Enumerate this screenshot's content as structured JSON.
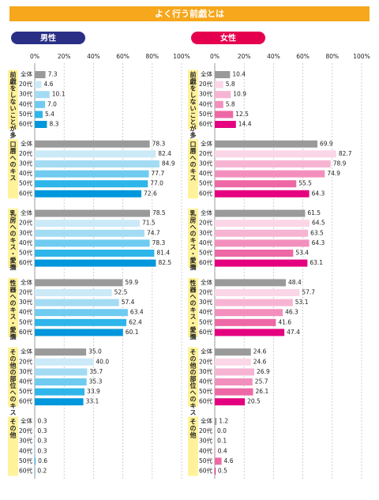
{
  "title": "よく行う前戯とは",
  "chart_data": [
    {
      "type": "bar",
      "horizontal": true,
      "title": "男性",
      "title_color": "#2a2f86",
      "categories": [
        "全体",
        "20代",
        "30代",
        "40代",
        "50代",
        "60代"
      ],
      "colors": [
        "#9a9a9a",
        "#cbe9f7",
        "#a3dbf3",
        "#6fcbf0",
        "#2eb5ea",
        "#0097dc"
      ],
      "xlim": [
        0,
        100
      ],
      "xticks": [
        {
          "value": 0,
          "label": "0%"
        },
        {
          "value": 20,
          "label": "20%"
        },
        {
          "value": 40,
          "label": "40%"
        },
        {
          "value": 60,
          "label": "60%"
        },
        {
          "value": 80,
          "label": "80%"
        },
        {
          "value": 100,
          "label": "100%"
        }
      ],
      "grid": true,
      "series": [
        {
          "name": "前戯をしないことが多い",
          "values": [
            7.3,
            4.6,
            10.1,
            7.0,
            5.4,
            8.3
          ],
          "value_labels": [
            "7.3",
            "4.6",
            "10.1",
            "7.0",
            "5.4",
            "8.3"
          ]
        },
        {
          "name": "口唇へのキス",
          "values": [
            78.3,
            82.4,
            84.9,
            77.7,
            77.0,
            72.6
          ],
          "value_labels": [
            "78.3",
            "82.4",
            "84.9",
            "77.7",
            "77.0",
            "72.6"
          ]
        },
        {
          "name": "乳房へのキス・愛撫",
          "values": [
            78.5,
            71.5,
            74.7,
            78.3,
            81.4,
            82.5
          ],
          "value_labels": [
            "78.5",
            "71.5",
            "74.7",
            "78.3",
            "81.4",
            "82.5"
          ]
        },
        {
          "name": "性器へのキス・愛撫",
          "values": [
            59.9,
            52.5,
            57.4,
            63.4,
            62.4,
            60.1
          ],
          "value_labels": [
            "59.9",
            "52.5",
            "57.4",
            "63.4",
            "62.4",
            "60.1"
          ]
        },
        {
          "name": "その他の部位へのキス・愛撫",
          "values": [
            35.0,
            40.0,
            35.7,
            35.3,
            33.9,
            33.1
          ],
          "value_labels": [
            "35.0",
            "40.0",
            "35.7",
            "35.3",
            "33.9",
            "33.1"
          ]
        },
        {
          "name": "その他",
          "values": [
            0.3,
            0.3,
            0.3,
            0.3,
            0.6,
            0.2
          ],
          "value_labels": [
            "0.3",
            "0.3",
            "0.3",
            "0.3",
            "0.6",
            "0.2"
          ]
        }
      ]
    },
    {
      "type": "bar",
      "horizontal": true,
      "title": "女性",
      "title_color": "#e5004f",
      "categories": [
        "全体",
        "20代",
        "30代",
        "40代",
        "50代",
        "60代"
      ],
      "colors": [
        "#9a9a9a",
        "#fbd6e7",
        "#f7b4d2",
        "#f38fbd",
        "#ee68a5",
        "#e4007f"
      ],
      "xlim": [
        0,
        100
      ],
      "xticks": [
        {
          "value": 0,
          "label": "0%"
        },
        {
          "value": 20,
          "label": "20%"
        },
        {
          "value": 40,
          "label": "40%"
        },
        {
          "value": 60,
          "label": "60%"
        },
        {
          "value": 80,
          "label": "80%"
        },
        {
          "value": 100,
          "label": "100%"
        }
      ],
      "grid": true,
      "series": [
        {
          "name": "前戯をしないことが多い",
          "values": [
            10.4,
            5.8,
            10.9,
            5.8,
            12.5,
            14.4
          ],
          "value_labels": [
            "10.4",
            "5.8",
            "10.9",
            "5.8",
            "12.5",
            "14.4"
          ]
        },
        {
          "name": "口唇へのキス",
          "values": [
            69.9,
            82.7,
            78.9,
            74.9,
            55.5,
            64.3
          ],
          "value_labels": [
            "69.9",
            "82.7",
            "78.9",
            "74.9",
            "55.5",
            "64.3"
          ]
        },
        {
          "name": "乳房へのキス・愛撫",
          "values": [
            61.5,
            64.5,
            63.5,
            64.3,
            53.4,
            63.1
          ],
          "value_labels": [
            "61.5",
            "64.5",
            "63.5",
            "64.3",
            "53.4",
            "63.1"
          ]
        },
        {
          "name": "性器へのキス・愛撫",
          "values": [
            48.4,
            57.7,
            53.1,
            46.3,
            41.6,
            47.4
          ],
          "value_labels": [
            "48.4",
            "57.7",
            "53.1",
            "46.3",
            "41.6",
            "47.4"
          ]
        },
        {
          "name": "その他の部位へのキス・愛撫",
          "values": [
            24.6,
            24.6,
            26.9,
            25.7,
            26.1,
            20.5
          ],
          "value_labels": [
            "24.6",
            "24.6",
            "26.9",
            "25.7",
            "26.1",
            "20.5"
          ]
        },
        {
          "name": "その他",
          "values": [
            1.2,
            0.0,
            0.1,
            0.4,
            4.6,
            0.5
          ],
          "value_labels": [
            "1.2",
            "0.0",
            "0.1",
            "0.4",
            "4.6",
            "0.5"
          ]
        }
      ]
    }
  ]
}
